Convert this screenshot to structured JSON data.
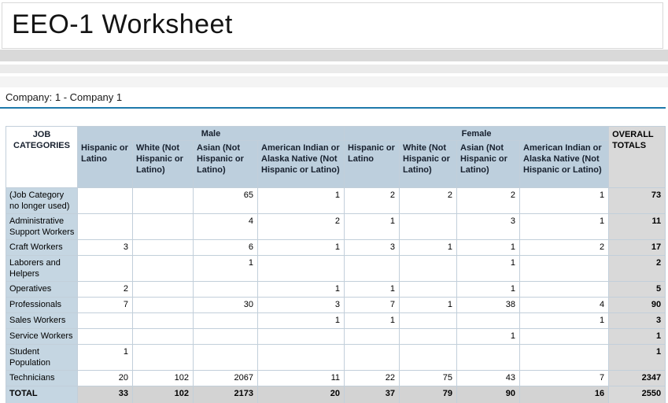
{
  "title": "EEO-1 Worksheet",
  "company_line": "Company: 1 - Company 1",
  "colors": {
    "header_bg": "#bdcfdd",
    "row_label_bg": "#c5d6e2",
    "totals_bg": "#d9d9d9",
    "total_row_bg": "#d3d3d3",
    "header_text": "#17202e",
    "accent_rule": "#1e79ab",
    "table_bottom_rule": "#3e7eb0",
    "band1": "#d9d9d9",
    "band2": "#ebebeb",
    "band3": "#f4f4f4"
  },
  "table": {
    "corner_header": "JOB CATEGORIES",
    "group_headers": {
      "male": "Male",
      "female": "Female"
    },
    "ethnicity_headers": [
      "Hispanic or Latino",
      "White (Not Hispanic or Latino)",
      "Asian (Not Hispanic or Latino)",
      "American Indian or Alaska Native (Not Hispanic or Latino)"
    ],
    "overall_header": "OVERALL TOTALS",
    "rows": [
      {
        "label": "(Job Category no longer used)",
        "cells": [
          "",
          "",
          "65",
          "1",
          "2",
          "2",
          "2",
          "1",
          "73"
        ]
      },
      {
        "label": "Administrative Support Workers",
        "cells": [
          "",
          "",
          "4",
          "2",
          "1",
          "",
          "3",
          "1",
          "11"
        ]
      },
      {
        "label": "Craft Workers",
        "cells": [
          "3",
          "",
          "6",
          "1",
          "3",
          "1",
          "1",
          "2",
          "17"
        ]
      },
      {
        "label": "Laborers and Helpers",
        "cells": [
          "",
          "",
          "1",
          "",
          "",
          "",
          "1",
          "",
          "2"
        ]
      },
      {
        "label": "Operatives",
        "cells": [
          "2",
          "",
          "",
          "1",
          "1",
          "",
          "1",
          "",
          "5"
        ]
      },
      {
        "label": "Professionals",
        "cells": [
          "7",
          "",
          "30",
          "3",
          "7",
          "1",
          "38",
          "4",
          "90"
        ]
      },
      {
        "label": "Sales Workers",
        "cells": [
          "",
          "",
          "",
          "1",
          "1",
          "",
          "",
          "1",
          "3"
        ]
      },
      {
        "label": "Service Workers",
        "cells": [
          "",
          "",
          "",
          "",
          "",
          "",
          "1",
          "",
          "1"
        ]
      },
      {
        "label": "Student Population",
        "cells": [
          "1",
          "",
          "",
          "",
          "",
          "",
          "",
          "",
          "1"
        ]
      },
      {
        "label": "Technicians",
        "cells": [
          "20",
          "102",
          "2067",
          "11",
          "22",
          "75",
          "43",
          "7",
          "2347"
        ]
      }
    ],
    "total_row": {
      "label": "TOTAL",
      "cells": [
        "33",
        "102",
        "2173",
        "20",
        "37",
        "79",
        "90",
        "16",
        "2550"
      ]
    }
  }
}
